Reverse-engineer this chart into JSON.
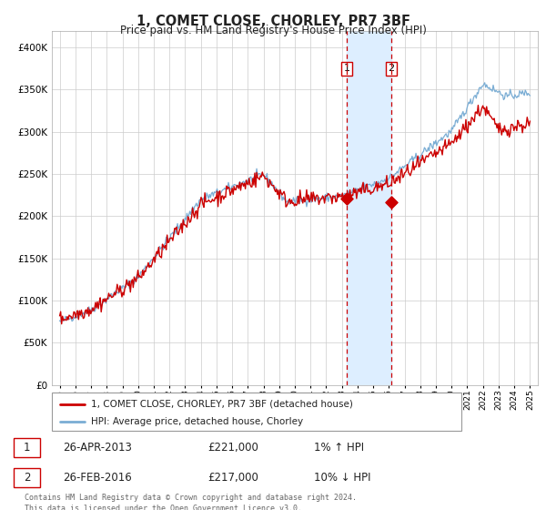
{
  "title": "1, COMET CLOSE, CHORLEY, PR7 3BF",
  "subtitle": "Price paid vs. HM Land Registry's House Price Index (HPI)",
  "legend_label1": "1, COMET CLOSE, CHORLEY, PR7 3BF (detached house)",
  "legend_label2": "HPI: Average price, detached house, Chorley",
  "annotation1_label": "1",
  "annotation1_date": "26-APR-2013",
  "annotation1_price": "£221,000",
  "annotation1_hpi": "1% ↑ HPI",
  "annotation1_year": 2013.32,
  "annotation1_value": 221000,
  "annotation2_label": "2",
  "annotation2_date": "26-FEB-2016",
  "annotation2_price": "£217,000",
  "annotation2_hpi": "10% ↓ HPI",
  "annotation2_year": 2016.15,
  "annotation2_value": 217000,
  "shade_start": 2013.32,
  "shade_end": 2016.15,
  "red_color": "#cc0000",
  "blue_color": "#7aadd4",
  "shade_color": "#ddeeff",
  "dashed_color": "#cc0000",
  "footer": "Contains HM Land Registry data © Crown copyright and database right 2024.\nThis data is licensed under the Open Government Licence v3.0.",
  "ylim_min": 0,
  "ylim_max": 420000,
  "xlim_min": 1994.5,
  "xlim_max": 2025.5,
  "background_color": "#ffffff",
  "grid_color": "#cccccc"
}
